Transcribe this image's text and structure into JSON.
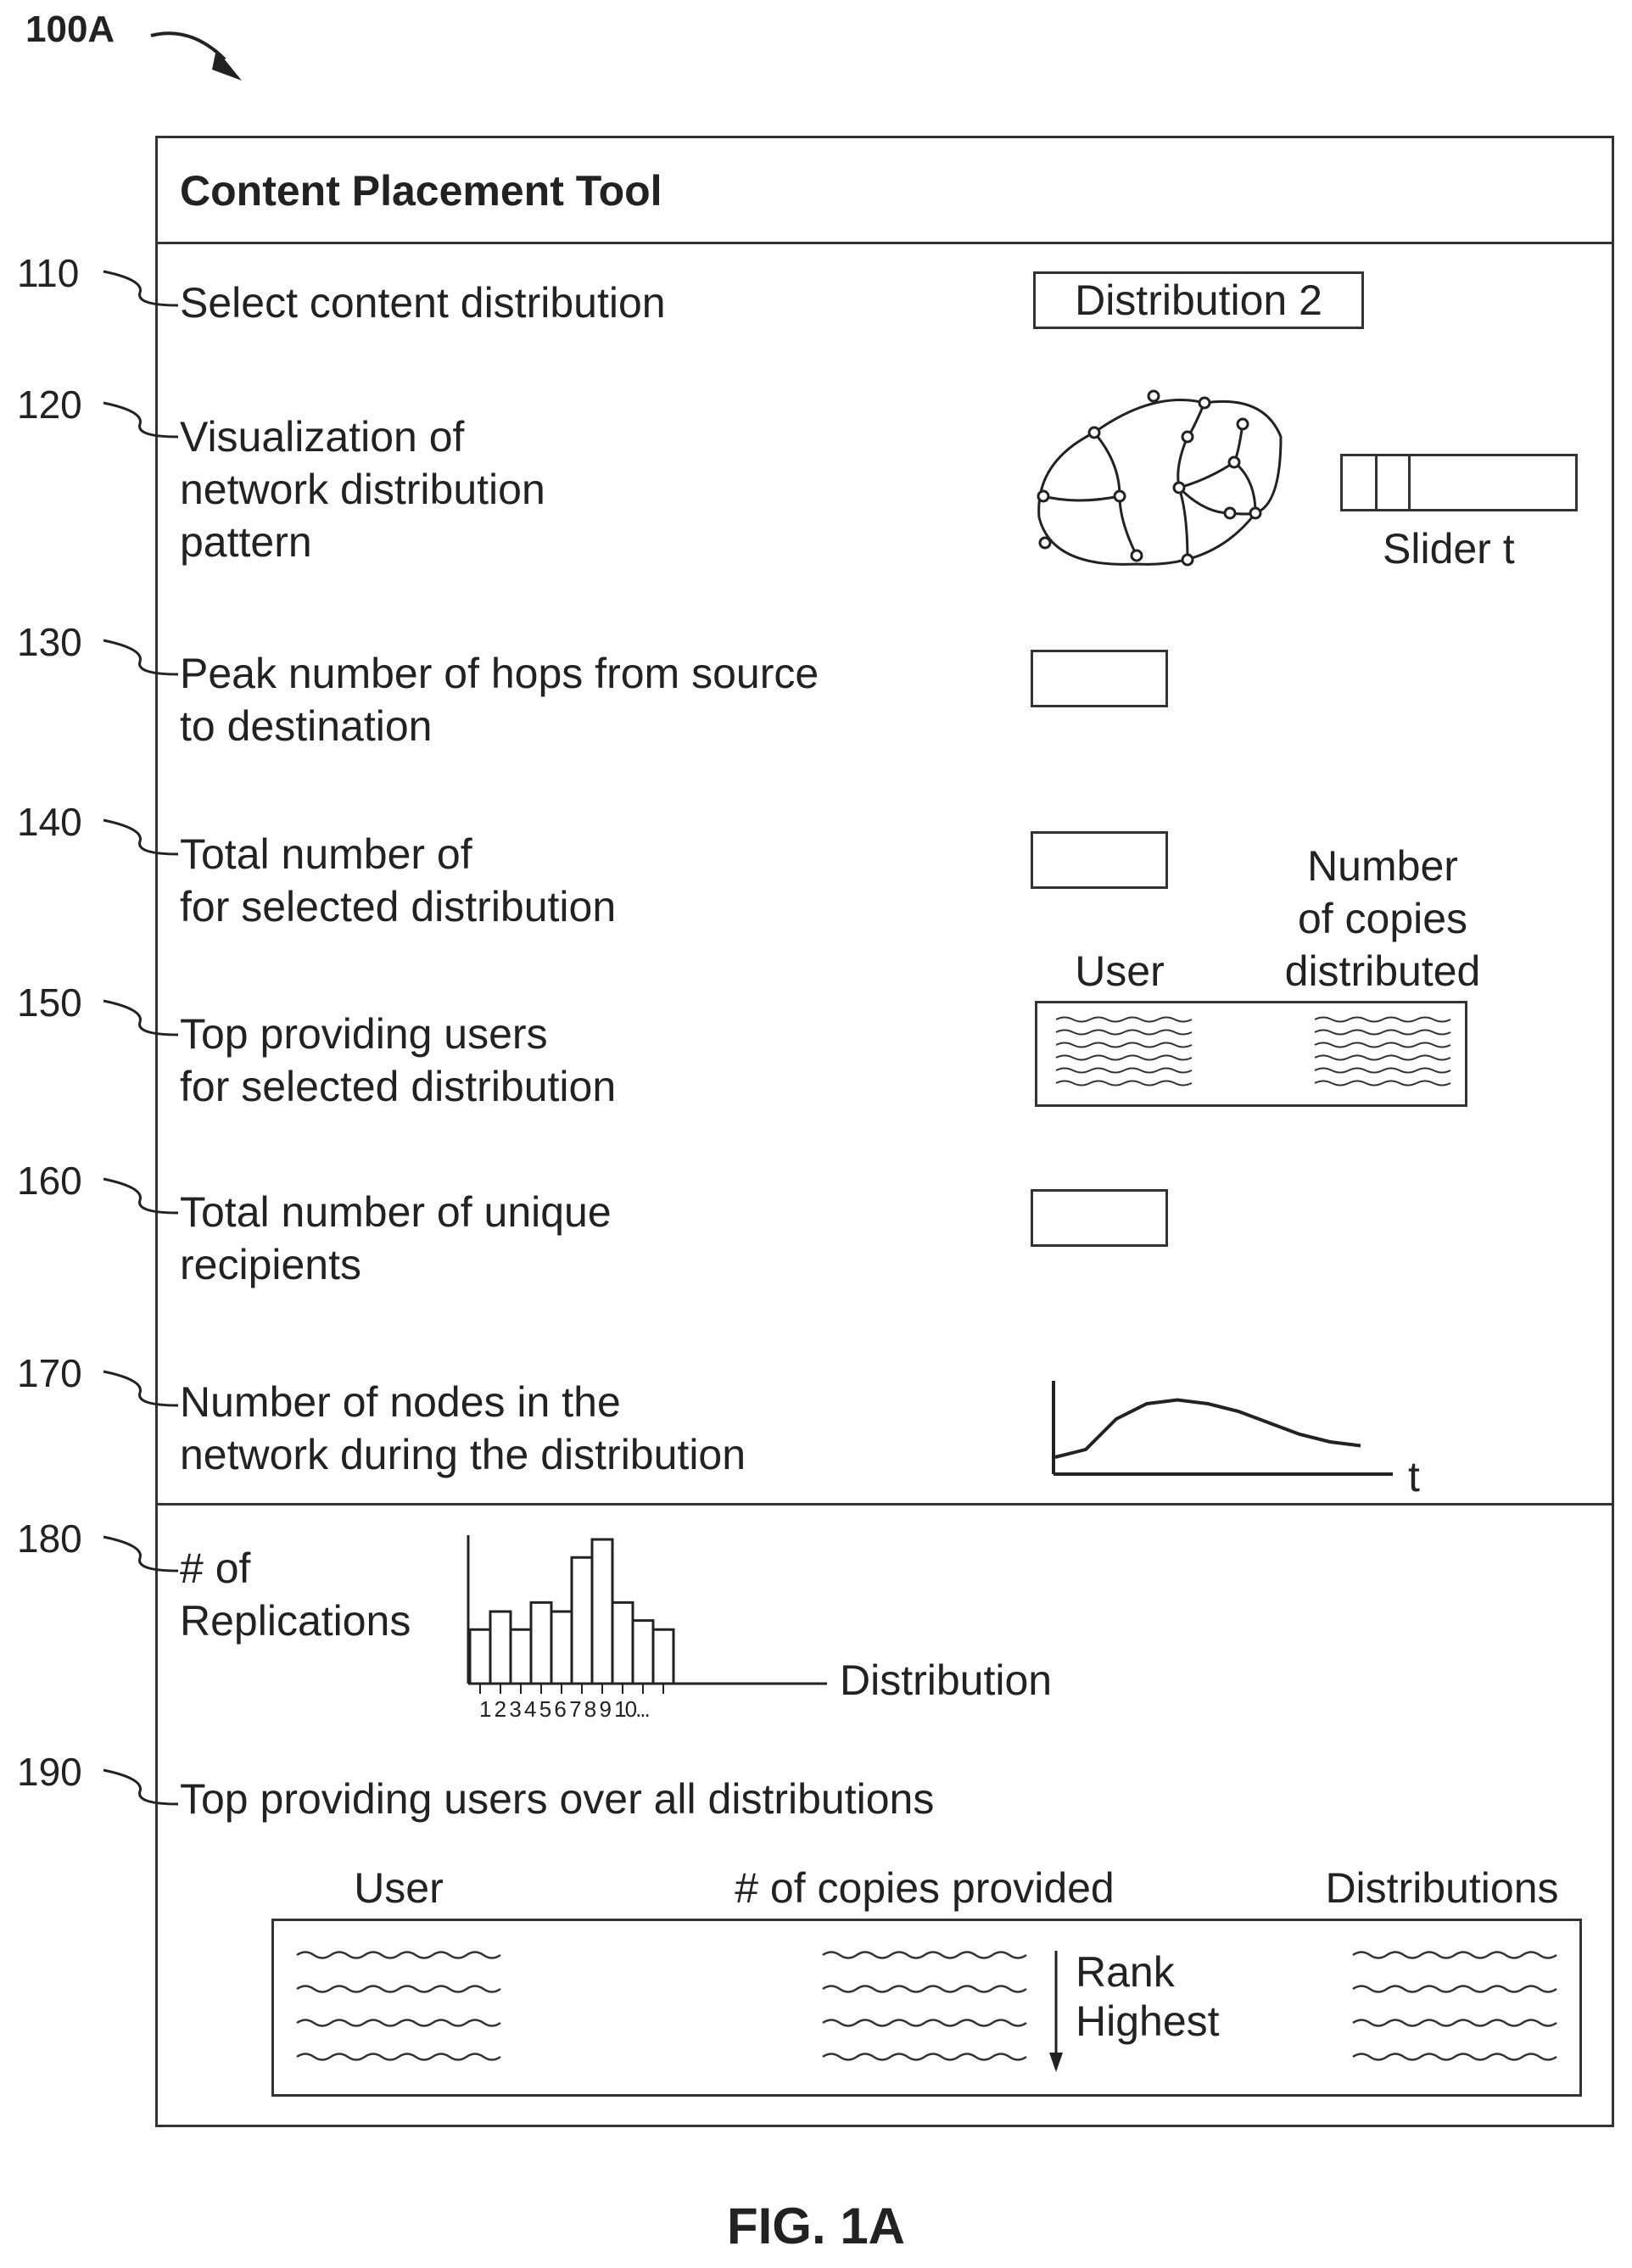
{
  "figure_ref": "100A",
  "title": "Content Placement Tool",
  "rows": [
    {
      "ref": "110",
      "label": "Select content distribution"
    },
    {
      "ref": "120",
      "label": "Visualization of\nnetwork distribution\npattern"
    },
    {
      "ref": "130",
      "label": "Peak number of hops from source\nto destination"
    },
    {
      "ref": "140",
      "label": "Total number of\nfor selected distribution"
    },
    {
      "ref": "150",
      "label": "Top providing users\nfor selected distribution"
    },
    {
      "ref": "160",
      "label": "Total number of unique\nrecipients"
    },
    {
      "ref": "170",
      "label": "Number of nodes in the\nnetwork during the distribution"
    },
    {
      "ref": "180",
      "label": "# of\nReplications"
    },
    {
      "ref": "190",
      "label": "Top providing users over all distributions"
    }
  ],
  "distribution_select": {
    "value": "Distribution 2"
  },
  "slider": {
    "label": "Slider t"
  },
  "top_users_table": {
    "col_user": "User",
    "col_copies": "Number\nof copies\ndistributed"
  },
  "nodes_chart": {
    "x_label": "t"
  },
  "replication_chart": {
    "x_label": "Distribution",
    "tick_labels": "1 2 3 4 5 6 7 8 9 10..."
  },
  "all_users_table": {
    "col_user": "User",
    "col_copies": "# of copies provided",
    "col_distributions": "Distributions",
    "rank_label": "Rank\nHighest"
  },
  "caption": "FIG. 1A",
  "chart_data": [
    {
      "type": "bar",
      "categories": [
        "1",
        "2",
        "3",
        "4",
        "5",
        "6",
        "7",
        "8",
        "9",
        "10"
      ],
      "values": [
        3,
        4,
        3,
        4.5,
        4,
        7,
        8,
        4.5,
        3.5,
        3
      ],
      "xlabel": "Distribution",
      "ylabel": "# of Replications"
    },
    {
      "type": "line",
      "x": [
        0,
        1,
        2,
        3,
        4,
        5,
        6,
        7,
        8,
        9,
        10
      ],
      "y": [
        0.2,
        0.3,
        0.7,
        0.9,
        0.95,
        0.9,
        0.8,
        0.65,
        0.5,
        0.4,
        0.35
      ],
      "xlabel": "t",
      "ylabel": "Number of nodes in the network during the distribution"
    }
  ]
}
